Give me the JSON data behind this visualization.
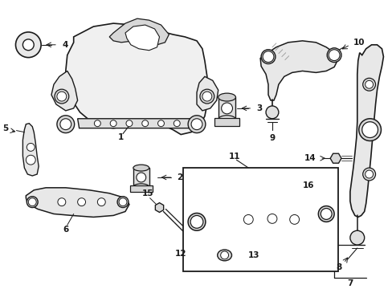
{
  "background_color": "#ffffff",
  "line_color": "#1a1a1a",
  "fig_width": 4.89,
  "fig_height": 3.6,
  "dpi": 100,
  "label_fs": 7.5,
  "lw_main": 1.0,
  "lw_detail": 0.6
}
